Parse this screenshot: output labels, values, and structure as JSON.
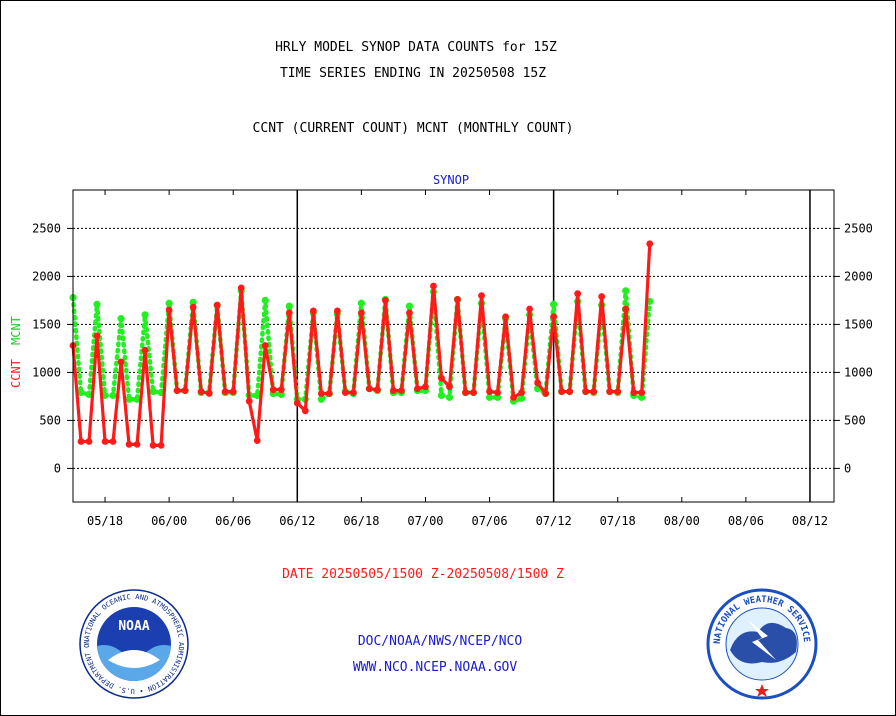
{
  "header": {
    "line1": "HRLY MODEL SYNOP DATA COUNTS for 15Z",
    "line2": "TIME SERIES ENDING IN 20250508 15Z",
    "line3": "CCNT (CURRENT COUNT) MCNT (MONTHLY COUNT)"
  },
  "footer": {
    "date_range": "DATE 20250505/1500 Z-20250508/1500 Z",
    "org_line": "DOC/NOAA/NWS/NCEP/NCO",
    "url_line": "WWW.NCO.NCEP.NOAA.GOV"
  },
  "logos": {
    "noaa_wordmark": "NOAA",
    "noaa_ring_text": "NATIONAL OCEANIC AND ATMOSPHERIC ADMINISTRATION • U.S. DEPARTMENT OF COMMERCE •",
    "nws_ring_text": "NATIONAL WEATHER SERVICE"
  },
  "colors": {
    "ccnt": "#ff1a1a",
    "mcnt": "#22ee22",
    "title": "#1a1acc",
    "date": "#ff1a1a",
    "frame": "#000000"
  },
  "chart_data": {
    "type": "line",
    "title": "SYNOP",
    "ylabel_ccnt": "CCNT",
    "ylabel_mcnt": "MCNT",
    "ylim": [
      -350,
      2900
    ],
    "yticks": [
      0,
      500,
      1000,
      1500,
      2000,
      2500
    ],
    "ytick_labels": [
      "0",
      "500",
      "1000",
      "1500",
      "2000",
      "2500"
    ],
    "xlim": [
      0,
      95
    ],
    "xticks": [
      4,
      12,
      20,
      28,
      36,
      44,
      52,
      60,
      68,
      76,
      84,
      92
    ],
    "xtick_labels": [
      "05/18",
      "06/00",
      "06/06",
      "06/12",
      "06/18",
      "07/00",
      "07/06",
      "07/12",
      "07/18",
      "08/00",
      "08/06",
      "08/12"
    ],
    "separators": [
      28,
      60,
      92
    ],
    "grid": true,
    "series": [
      {
        "name": "CCNT",
        "color": "#ff1a1a",
        "values": [
          1280,
          280,
          280,
          1380,
          280,
          280,
          1110,
          250,
          250,
          1230,
          240,
          240,
          1650,
          810,
          810,
          1680,
          800,
          780,
          1700,
          800,
          800,
          1880,
          700,
          290,
          1280,
          820,
          820,
          1620,
          680,
          600,
          1640,
          780,
          780,
          1640,
          790,
          790,
          1620,
          830,
          820,
          1750,
          810,
          810,
          1620,
          830,
          850,
          1900,
          940,
          850,
          1760,
          790,
          790,
          1800,
          800,
          790,
          1580,
          740,
          790,
          1660,
          890,
          780,
          1580,
          800,
          800,
          1820,
          800,
          800,
          1790,
          800,
          800,
          1660,
          790,
          790,
          2340
        ]
      },
      {
        "name": "MCNT",
        "color": "#22ee22",
        "values": [
          1780,
          790,
          770,
          1710,
          760,
          760,
          1560,
          720,
          720,
          1600,
          800,
          790,
          1720,
          810,
          810,
          1730,
          790,
          790,
          1700,
          790,
          790,
          1850,
          760,
          760,
          1750,
          780,
          770,
          1690,
          720,
          720,
          1620,
          720,
          780,
          1610,
          800,
          780,
          1720,
          830,
          810,
          1760,
          790,
          790,
          1690,
          810,
          810,
          1840,
          760,
          740,
          1760,
          790,
          790,
          1720,
          740,
          740,
          1560,
          700,
          730,
          1600,
          830,
          780,
          1710,
          800,
          800,
          1740,
          800,
          790,
          1700,
          800,
          790,
          1850,
          760,
          740,
          1740
        ]
      }
    ]
  }
}
